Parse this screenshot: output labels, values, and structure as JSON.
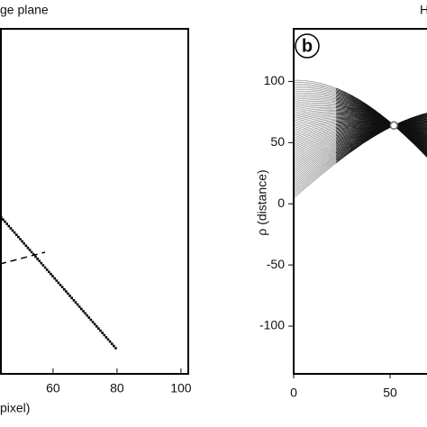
{
  "chart_data": [
    {
      "type": "image",
      "title": "ge plane",
      "x_label": "pixel)",
      "xlim": [
        0,
        102
      ],
      "xticks": [
        60,
        80,
        100
      ]
    },
    {
      "type": "hough",
      "title": "H",
      "panel_label": "b",
      "y_label": "ρ (distance)",
      "xlim": [
        0,
        180
      ],
      "xticks": [
        0,
        50
      ],
      "ylim": [
        -139,
        143
      ],
      "yticks": [
        100,
        50,
        0,
        -50,
        -100
      ]
    }
  ]
}
